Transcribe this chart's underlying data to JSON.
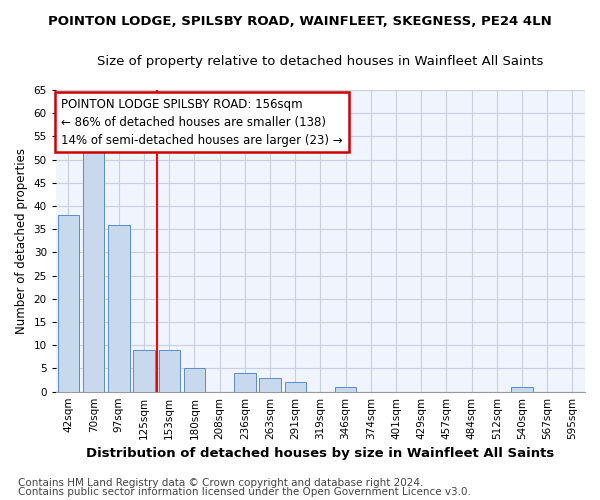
{
  "title1": "POINTON LODGE, SPILSBY ROAD, WAINFLEET, SKEGNESS, PE24 4LN",
  "title2": "Size of property relative to detached houses in Wainfleet All Saints",
  "xlabel": "Distribution of detached houses by size in Wainfleet All Saints",
  "ylabel": "Number of detached properties",
  "categories": [
    "42sqm",
    "70sqm",
    "97sqm",
    "125sqm",
    "153sqm",
    "180sqm",
    "208sqm",
    "236sqm",
    "263sqm",
    "291sqm",
    "319sqm",
    "346sqm",
    "374sqm",
    "401sqm",
    "429sqm",
    "457sqm",
    "484sqm",
    "512sqm",
    "540sqm",
    "567sqm",
    "595sqm"
  ],
  "values": [
    38,
    54,
    36,
    9,
    9,
    5,
    0,
    4,
    3,
    2,
    0,
    1,
    0,
    0,
    0,
    0,
    0,
    0,
    1,
    0,
    0
  ],
  "bar_color": "#c8d9ee",
  "bar_edge_color": "#5b8cc8",
  "red_line_index": 4,
  "annotation_text": "POINTON LODGE SPILSBY ROAD: 156sqm\n← 86% of detached houses are smaller (138)\n14% of semi-detached houses are larger (23) →",
  "annotation_box_color": "#ffffff",
  "annotation_box_edge": "#cc0000",
  "ylim": [
    0,
    65
  ],
  "yticks": [
    0,
    5,
    10,
    15,
    20,
    25,
    30,
    35,
    40,
    45,
    50,
    55,
    60,
    65
  ],
  "footnote1": "Contains HM Land Registry data © Crown copyright and database right 2024.",
  "footnote2": "Contains public sector information licensed under the Open Government Licence v3.0.",
  "plot_bg_color": "#f0f4fc",
  "fig_bg_color": "#ffffff",
  "grid_color": "#c8d0e0",
  "title1_fontsize": 9.5,
  "title2_fontsize": 9.5,
  "xlabel_fontsize": 9.5,
  "ylabel_fontsize": 8.5,
  "annotation_fontsize": 8.5,
  "footnote_fontsize": 7.5,
  "tick_fontsize": 7.5
}
